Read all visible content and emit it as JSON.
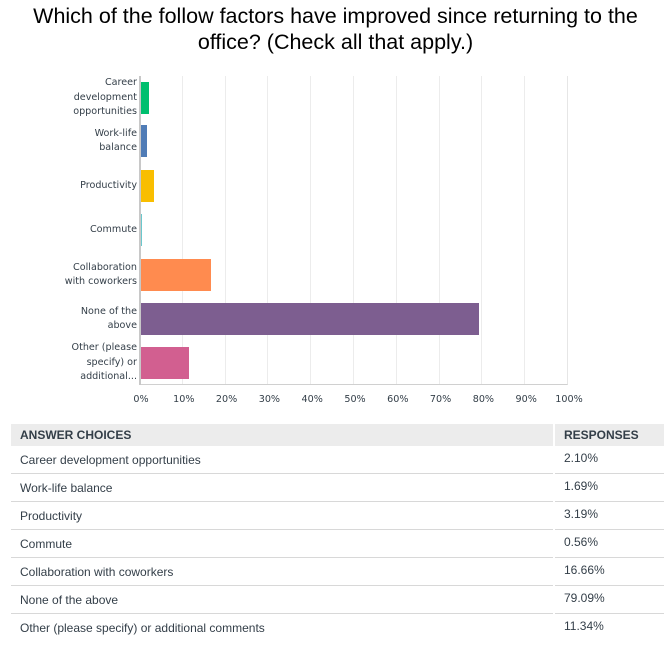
{
  "title": "Which of the follow factors have improved since returning to the office? (Check all that apply.)",
  "title_line1": "Which of the follow factors have improved since returning to the",
  "title_line2": "office? (Check all that apply.)",
  "chart_data": {
    "type": "bar",
    "orientation": "horizontal",
    "title": "Which of the follow factors have improved since returning to the office? (Check all that apply.)",
    "xlabel": "",
    "ylabel": "",
    "xlim": [
      0,
      100
    ],
    "grid": true,
    "legend": "none",
    "categories": [
      "Career development opportunities",
      "Work-life balance",
      "Productivity",
      "Commute",
      "Collaboration with coworkers",
      "None of the above",
      "Other (please specify) or additional comments"
    ],
    "axis_category_labels": [
      [
        "Career",
        "development",
        "opportunities"
      ],
      [
        "Work-life",
        "balance"
      ],
      [
        "Productivity"
      ],
      [
        "Commute"
      ],
      [
        "Collaboration",
        "with coworkers"
      ],
      [
        "None of the",
        "above"
      ],
      [
        "Other (please",
        "specify) or",
        "additional..."
      ]
    ],
    "values": [
      2.1,
      1.69,
      3.19,
      0.56,
      16.66,
      79.09,
      11.34
    ],
    "colors": [
      "#00bf6f",
      "#507cb6",
      "#f9be00",
      "#6bc8cd",
      "#ff8b4f",
      "#7d5e90",
      "#d25f90"
    ],
    "x_ticks": [
      "0%",
      "10%",
      "20%",
      "30%",
      "40%",
      "50%",
      "60%",
      "70%",
      "80%",
      "90%",
      "100%"
    ]
  },
  "table": {
    "headers": [
      "ANSWER CHOICES",
      "RESPONSES"
    ],
    "rows": [
      {
        "choice": "Career development opportunities",
        "response": "2.10%"
      },
      {
        "choice": "Work-life balance",
        "response": "1.69%"
      },
      {
        "choice": "Productivity",
        "response": "3.19%"
      },
      {
        "choice": "Commute",
        "response": "0.56%"
      },
      {
        "choice": "Collaboration with coworkers",
        "response": "16.66%"
      },
      {
        "choice": "None of the above",
        "response": "79.09%"
      },
      {
        "choice": "Other (please specify) or additional comments",
        "response": "11.34%"
      }
    ]
  }
}
